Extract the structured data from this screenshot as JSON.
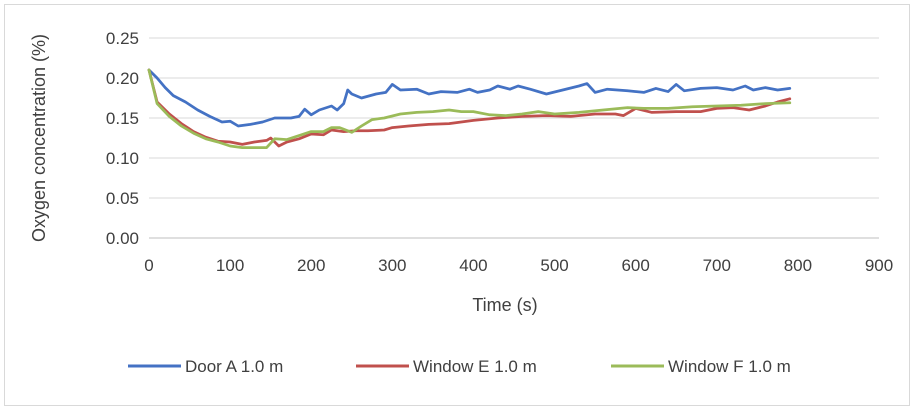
{
  "chart_data": {
    "type": "line",
    "title": "",
    "xlabel": "Time (s)",
    "ylabel": "Oxygen concentration (%)",
    "xlim": [
      0,
      900
    ],
    "ylim": [
      0,
      0.25
    ],
    "x_ticks": [
      0,
      100,
      200,
      300,
      400,
      500,
      600,
      700,
      800,
      900
    ],
    "y_ticks": [
      0,
      0.05,
      0.1,
      0.15,
      0.2,
      0.25
    ],
    "x_tick_labels": [
      "0",
      "100",
      "200",
      "300",
      "400",
      "500",
      "600",
      "700",
      "800",
      "900"
    ],
    "y_tick_labels": [
      "0.00",
      "0.05",
      "0.10",
      "0.15",
      "0.20",
      "0.25"
    ],
    "grid": "horizontal",
    "legend_position": "bottom",
    "series": [
      {
        "name": "Door A 1.0 m",
        "color": "#4472c4",
        "points": [
          [
            0,
            0.21
          ],
          [
            10,
            0.2
          ],
          [
            20,
            0.188
          ],
          [
            30,
            0.178
          ],
          [
            45,
            0.17
          ],
          [
            60,
            0.16
          ],
          [
            75,
            0.152
          ],
          [
            90,
            0.145
          ],
          [
            100,
            0.146
          ],
          [
            110,
            0.14
          ],
          [
            125,
            0.142
          ],
          [
            140,
            0.145
          ],
          [
            155,
            0.15
          ],
          [
            175,
            0.15
          ],
          [
            185,
            0.152
          ],
          [
            192,
            0.161
          ],
          [
            200,
            0.154
          ],
          [
            210,
            0.16
          ],
          [
            225,
            0.165
          ],
          [
            232,
            0.16
          ],
          [
            240,
            0.168
          ],
          [
            245,
            0.185
          ],
          [
            250,
            0.18
          ],
          [
            262,
            0.175
          ],
          [
            280,
            0.18
          ],
          [
            292,
            0.182
          ],
          [
            300,
            0.192
          ],
          [
            310,
            0.185
          ],
          [
            330,
            0.186
          ],
          [
            345,
            0.18
          ],
          [
            360,
            0.183
          ],
          [
            380,
            0.182
          ],
          [
            395,
            0.186
          ],
          [
            405,
            0.182
          ],
          [
            420,
            0.185
          ],
          [
            430,
            0.19
          ],
          [
            445,
            0.186
          ],
          [
            455,
            0.19
          ],
          [
            470,
            0.186
          ],
          [
            490,
            0.18
          ],
          [
            510,
            0.185
          ],
          [
            530,
            0.19
          ],
          [
            540,
            0.193
          ],
          [
            550,
            0.182
          ],
          [
            565,
            0.186
          ],
          [
            590,
            0.184
          ],
          [
            610,
            0.182
          ],
          [
            625,
            0.187
          ],
          [
            640,
            0.183
          ],
          [
            650,
            0.192
          ],
          [
            660,
            0.184
          ],
          [
            680,
            0.187
          ],
          [
            700,
            0.188
          ],
          [
            720,
            0.185
          ],
          [
            735,
            0.19
          ],
          [
            745,
            0.185
          ],
          [
            760,
            0.188
          ],
          [
            775,
            0.185
          ],
          [
            790,
            0.187
          ]
        ]
      },
      {
        "name": "Window E 1.0 m",
        "color": "#c0504d",
        "points": [
          [
            0,
            0.21
          ],
          [
            10,
            0.17
          ],
          [
            25,
            0.155
          ],
          [
            40,
            0.143
          ],
          [
            55,
            0.133
          ],
          [
            70,
            0.126
          ],
          [
            85,
            0.121
          ],
          [
            100,
            0.12
          ],
          [
            115,
            0.117
          ],
          [
            130,
            0.12
          ],
          [
            145,
            0.122
          ],
          [
            150,
            0.125
          ],
          [
            160,
            0.115
          ],
          [
            170,
            0.12
          ],
          [
            185,
            0.124
          ],
          [
            200,
            0.13
          ],
          [
            215,
            0.129
          ],
          [
            225,
            0.135
          ],
          [
            240,
            0.133
          ],
          [
            255,
            0.134
          ],
          [
            270,
            0.134
          ],
          [
            290,
            0.135
          ],
          [
            300,
            0.138
          ],
          [
            320,
            0.14
          ],
          [
            345,
            0.142
          ],
          [
            370,
            0.143
          ],
          [
            400,
            0.147
          ],
          [
            430,
            0.15
          ],
          [
            460,
            0.152
          ],
          [
            490,
            0.153
          ],
          [
            520,
            0.152
          ],
          [
            550,
            0.155
          ],
          [
            575,
            0.155
          ],
          [
            585,
            0.153
          ],
          [
            600,
            0.162
          ],
          [
            620,
            0.157
          ],
          [
            650,
            0.158
          ],
          [
            680,
            0.158
          ],
          [
            700,
            0.162
          ],
          [
            720,
            0.163
          ],
          [
            740,
            0.16
          ],
          [
            760,
            0.165
          ],
          [
            775,
            0.17
          ],
          [
            790,
            0.174
          ]
        ]
      },
      {
        "name": "Window F 1.0 m",
        "color": "#9bbb59",
        "points": [
          [
            0,
            0.21
          ],
          [
            10,
            0.168
          ],
          [
            25,
            0.152
          ],
          [
            40,
            0.14
          ],
          [
            55,
            0.131
          ],
          [
            70,
            0.124
          ],
          [
            85,
            0.12
          ],
          [
            100,
            0.115
          ],
          [
            115,
            0.113
          ],
          [
            130,
            0.113
          ],
          [
            145,
            0.113
          ],
          [
            155,
            0.124
          ],
          [
            170,
            0.123
          ],
          [
            185,
            0.128
          ],
          [
            200,
            0.133
          ],
          [
            215,
            0.133
          ],
          [
            225,
            0.138
          ],
          [
            235,
            0.138
          ],
          [
            250,
            0.132
          ],
          [
            262,
            0.14
          ],
          [
            275,
            0.148
          ],
          [
            290,
            0.15
          ],
          [
            310,
            0.155
          ],
          [
            330,
            0.157
          ],
          [
            350,
            0.158
          ],
          [
            370,
            0.16
          ],
          [
            385,
            0.158
          ],
          [
            400,
            0.158
          ],
          [
            420,
            0.154
          ],
          [
            440,
            0.153
          ],
          [
            460,
            0.155
          ],
          [
            480,
            0.158
          ],
          [
            500,
            0.155
          ],
          [
            530,
            0.157
          ],
          [
            560,
            0.16
          ],
          [
            590,
            0.163
          ],
          [
            610,
            0.162
          ],
          [
            640,
            0.162
          ],
          [
            670,
            0.164
          ],
          [
            700,
            0.165
          ],
          [
            730,
            0.166
          ],
          [
            760,
            0.168
          ],
          [
            790,
            0.169
          ]
        ]
      }
    ]
  }
}
